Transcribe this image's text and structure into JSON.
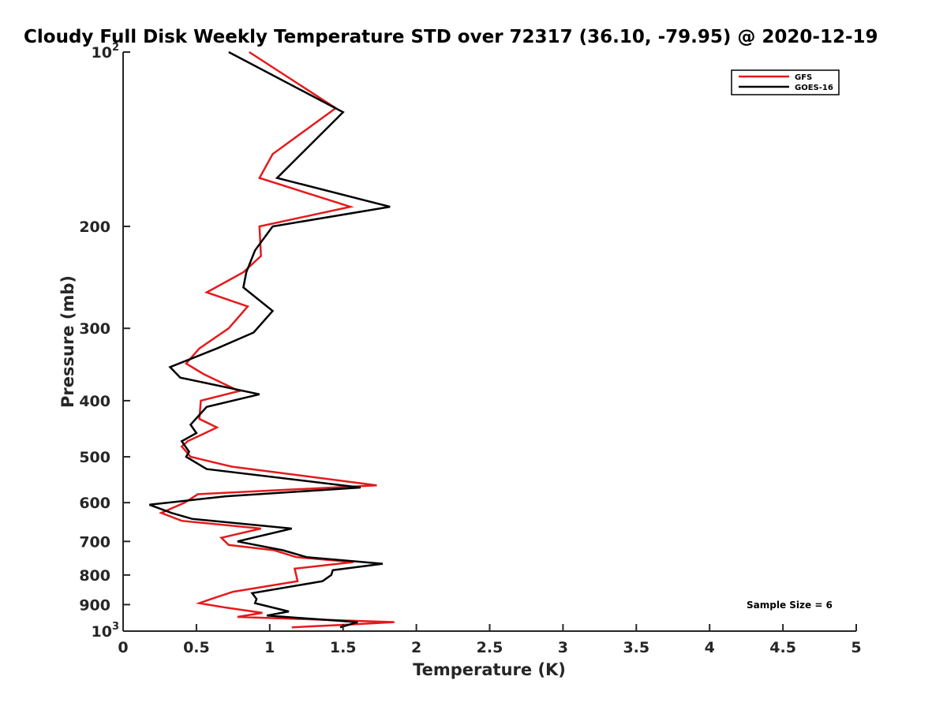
{
  "chart_data": {
    "type": "line",
    "title": "Cloudy Full Disk Weekly Temperature STD over 72317 (36.10, -79.95) @ 2020-12-19",
    "xlabel": "Temperature (K)",
    "ylabel": "Pressure (mb)",
    "xlim": [
      0,
      5
    ],
    "ylim": [
      100,
      1000
    ],
    "yscale": "log",
    "y_reversed": true,
    "x_ticks": [
      "0",
      "0.5",
      "1",
      "1.5",
      "2",
      "2.5",
      "3",
      "3.5",
      "4",
      "4.5",
      "5"
    ],
    "y_ticks": [
      {
        "value": 100,
        "base": "10",
        "exp": "2"
      },
      {
        "value": 200,
        "label": "200"
      },
      {
        "value": 300,
        "label": "300"
      },
      {
        "value": 400,
        "label": "400"
      },
      {
        "value": 500,
        "label": "500"
      },
      {
        "value": 600,
        "label": "600"
      },
      {
        "value": 700,
        "label": "700"
      },
      {
        "value": 800,
        "label": "800"
      },
      {
        "value": 900,
        "label": "900"
      },
      {
        "value": 1000,
        "base": "10",
        "exp": "3"
      }
    ],
    "legend": {
      "placement": "top-right"
    },
    "annotation": "Sample Size = 6",
    "series": [
      {
        "name": "GFS",
        "color": "#e41a1c",
        "points": [
          [
            0.86,
            100
          ],
          [
            1.45,
            125
          ],
          [
            1.02,
            150
          ],
          [
            0.93,
            165
          ],
          [
            1.55,
            185
          ],
          [
            0.93,
            200
          ],
          [
            0.94,
            225
          ],
          [
            0.82,
            240
          ],
          [
            0.57,
            260
          ],
          [
            0.85,
            275
          ],
          [
            0.72,
            300
          ],
          [
            0.52,
            325
          ],
          [
            0.43,
            345
          ],
          [
            0.55,
            360
          ],
          [
            0.79,
            385
          ],
          [
            0.53,
            400
          ],
          [
            0.52,
            430
          ],
          [
            0.64,
            445
          ],
          [
            0.44,
            470
          ],
          [
            0.4,
            480
          ],
          [
            0.46,
            500
          ],
          [
            0.74,
            520
          ],
          [
            1.73,
            560
          ],
          [
            0.51,
            580
          ],
          [
            0.42,
            600
          ],
          [
            0.26,
            625
          ],
          [
            0.4,
            645
          ],
          [
            0.94,
            665
          ],
          [
            0.67,
            690
          ],
          [
            0.72,
            710
          ],
          [
            1.03,
            725
          ],
          [
            1.18,
            745
          ],
          [
            1.57,
            760
          ],
          [
            1.17,
            780
          ],
          [
            1.19,
            820
          ],
          [
            0.75,
            855
          ],
          [
            0.6,
            880
          ],
          [
            0.52,
            895
          ],
          [
            0.69,
            910
          ],
          [
            0.95,
            930
          ],
          [
            0.78,
            945
          ],
          [
            1.85,
            965
          ],
          [
            1.52,
            975
          ],
          [
            1.15,
            985
          ]
        ]
      },
      {
        "name": "GOES-16",
        "color": "#000000",
        "points": [
          [
            0.72,
            100
          ],
          [
            1.5,
            127
          ],
          [
            1.05,
            165
          ],
          [
            1.82,
            185
          ],
          [
            1.02,
            200
          ],
          [
            0.9,
            220
          ],
          [
            0.84,
            240
          ],
          [
            0.82,
            255
          ],
          [
            1.02,
            280
          ],
          [
            0.89,
            305
          ],
          [
            0.64,
            325
          ],
          [
            0.32,
            350
          ],
          [
            0.39,
            365
          ],
          [
            0.93,
            390
          ],
          [
            0.57,
            410
          ],
          [
            0.46,
            440
          ],
          [
            0.5,
            455
          ],
          [
            0.4,
            470
          ],
          [
            0.45,
            490
          ],
          [
            0.43,
            500
          ],
          [
            0.57,
            525
          ],
          [
            1.62,
            565
          ],
          [
            0.7,
            585
          ],
          [
            0.18,
            605
          ],
          [
            0.33,
            625
          ],
          [
            0.47,
            640
          ],
          [
            1.15,
            665
          ],
          [
            0.78,
            700
          ],
          [
            1.09,
            725
          ],
          [
            1.25,
            745
          ],
          [
            1.77,
            765
          ],
          [
            1.43,
            785
          ],
          [
            1.42,
            800
          ],
          [
            1.36,
            820
          ],
          [
            0.88,
            860
          ],
          [
            0.91,
            880
          ],
          [
            0.9,
            895
          ],
          [
            1.13,
            925
          ],
          [
            0.98,
            940
          ],
          [
            1.6,
            965
          ],
          [
            1.48,
            985
          ]
        ]
      }
    ]
  }
}
